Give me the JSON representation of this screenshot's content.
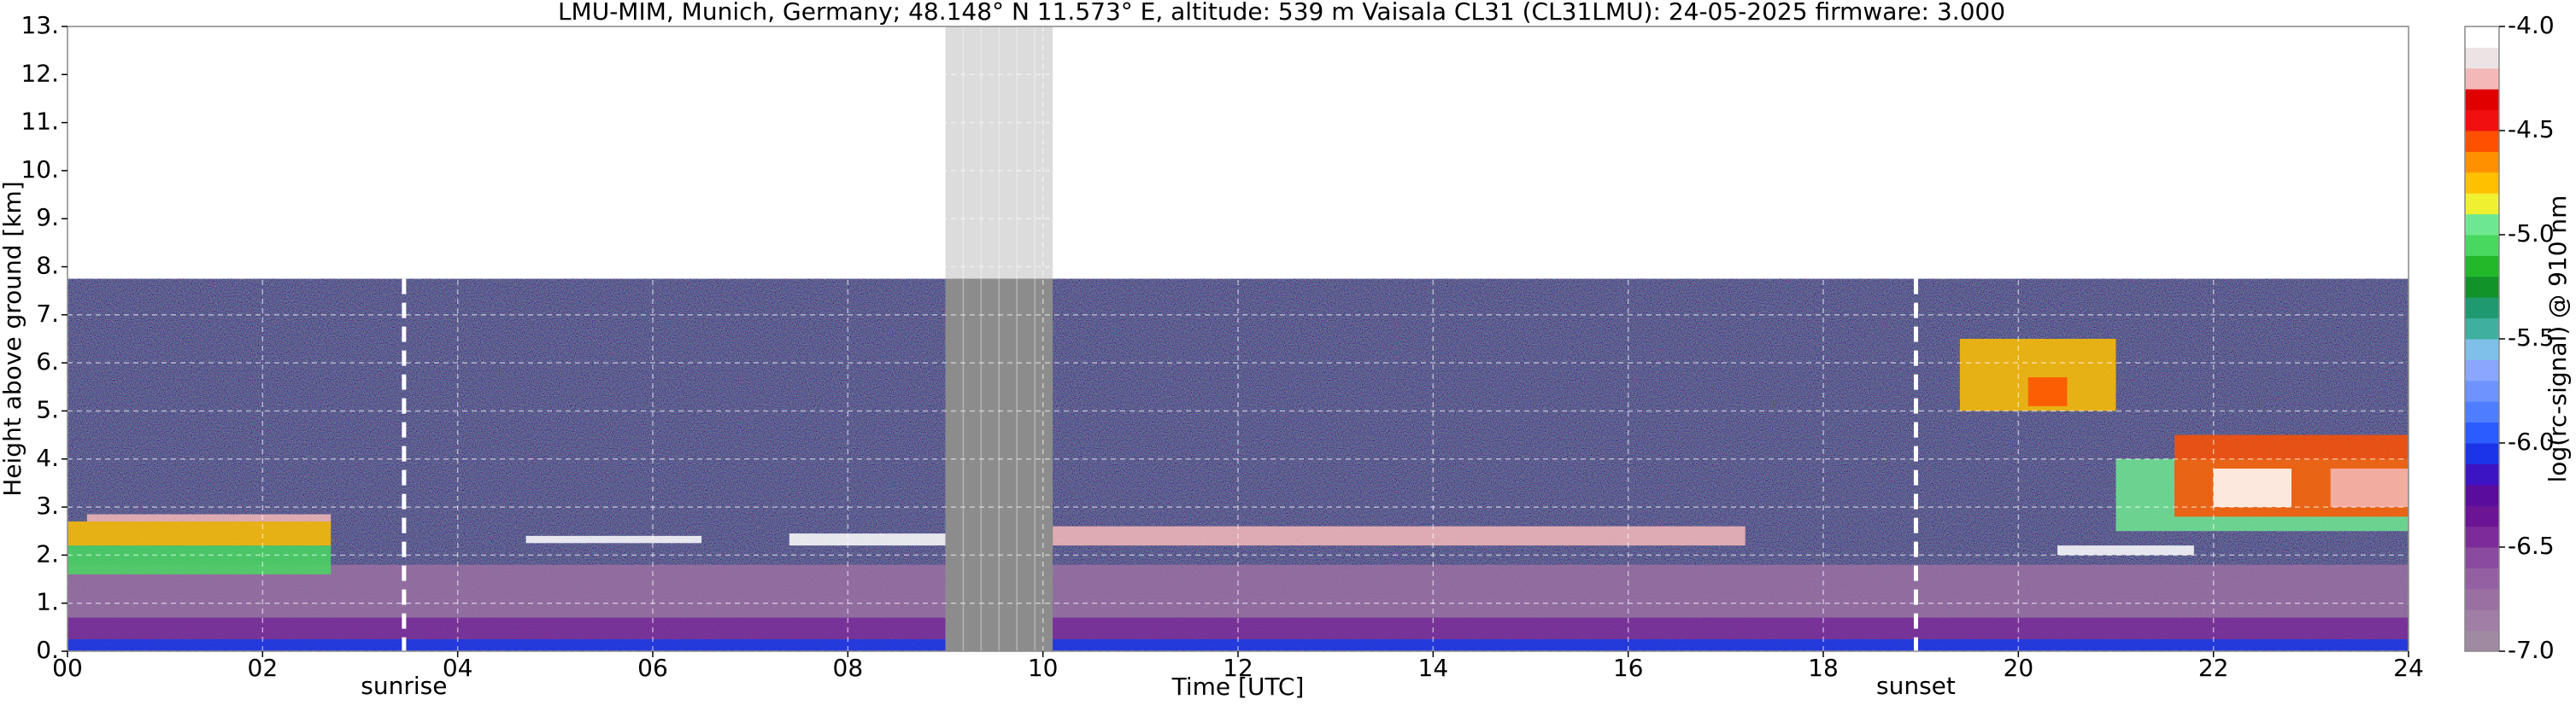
{
  "chart_data": {
    "type": "heatmap",
    "title": "LMU-MIM, Munich, Germany; 48.148° N 11.573° E, altitude: 539 m    Vaisala CL31 (CL31LMU): 24-05-2025    firmware: 3.000",
    "xlabel": "Time [UTC]",
    "ylabel": "Height above ground [km]",
    "colorbar_label": "log(rc-signal) @ 910 nm",
    "xlim": [
      0,
      24
    ],
    "ylim": [
      0,
      13
    ],
    "xticks": [
      {
        "value": 0,
        "label": "00"
      },
      {
        "value": 2,
        "label": "02"
      },
      {
        "value": 4,
        "label": "04"
      },
      {
        "value": 6,
        "label": "06"
      },
      {
        "value": 8,
        "label": "08"
      },
      {
        "value": 10,
        "label": "10"
      },
      {
        "value": 12,
        "label": "12"
      },
      {
        "value": 14,
        "label": "14"
      },
      {
        "value": 16,
        "label": "16"
      },
      {
        "value": 18,
        "label": "18"
      },
      {
        "value": 20,
        "label": "20"
      },
      {
        "value": 22,
        "label": "22"
      },
      {
        "value": 24,
        "label": "24"
      }
    ],
    "yticks": [
      {
        "value": 0,
        "label": "0."
      },
      {
        "value": 1,
        "label": "1."
      },
      {
        "value": 2,
        "label": "2."
      },
      {
        "value": 3,
        "label": "3."
      },
      {
        "value": 4,
        "label": "4."
      },
      {
        "value": 5,
        "label": "5."
      },
      {
        "value": 6,
        "label": "6."
      },
      {
        "value": 7,
        "label": "7."
      },
      {
        "value": 8,
        "label": "8."
      },
      {
        "value": 9,
        "label": "9."
      },
      {
        "value": 10,
        "label": "10."
      },
      {
        "value": 11,
        "label": "11."
      },
      {
        "value": 12,
        "label": "12."
      },
      {
        "value": 13,
        "label": "13."
      }
    ],
    "clim": [
      -7.0,
      -4.0
    ],
    "cticks": [
      {
        "value": -7.0,
        "label": "-7.0"
      },
      {
        "value": -6.5,
        "label": "-6.5"
      },
      {
        "value": -6.0,
        "label": "-6.0"
      },
      {
        "value": -5.5,
        "label": "-5.5"
      },
      {
        "value": -5.0,
        "label": "-5.0"
      },
      {
        "value": -4.5,
        "label": "-4.5"
      },
      {
        "value": -4.0,
        "label": "-4.0"
      }
    ],
    "colormap": [
      "#a08aa2",
      "#a07ea6",
      "#9a70a2",
      "#9460a2",
      "#8a4aa0",
      "#7c2c9a",
      "#6c1496",
      "#5a0c9c",
      "#3c14c4",
      "#1c34e8",
      "#2a5cff",
      "#4f7dff",
      "#6e93ff",
      "#8aa6ff",
      "#7ec0e8",
      "#3fb0a0",
      "#1f9a70",
      "#11932a",
      "#22b82a",
      "#48d860",
      "#6ee890",
      "#f0f030",
      "#ffc000",
      "#ff9000",
      "#ff5000",
      "#f01010",
      "#e00000",
      "#f4b8b8",
      "#ece4e4",
      "#ffffff"
    ],
    "grid": true,
    "range_top": 7.75,
    "missing": [
      9.0,
      10.1
    ],
    "layers": [
      {
        "t": [
          0,
          24
        ],
        "h": [
          0,
          0.25
        ],
        "value": -6.1
      },
      {
        "t": [
          0,
          24
        ],
        "h": [
          0.25,
          0.7
        ],
        "value": -6.5
      },
      {
        "t": [
          0,
          24
        ],
        "h": [
          0.7,
          1.2
        ],
        "value": -6.7
      },
      {
        "t": [
          0,
          24
        ],
        "h": [
          1.2,
          1.8
        ],
        "value": -6.8
      },
      {
        "t": [
          0,
          2.7
        ],
        "h": [
          1.6,
          2.2
        ],
        "value": -5.1
      },
      {
        "t": [
          0,
          2.7
        ],
        "h": [
          2.2,
          2.7
        ],
        "value": -4.8
      },
      {
        "t": [
          0.2,
          2.7
        ],
        "h": [
          2.7,
          2.85
        ],
        "value": -4.2
      },
      {
        "t": [
          4.7,
          6.5
        ],
        "h": [
          2.25,
          2.4
        ],
        "value": -4.1
      },
      {
        "t": [
          7.4,
          9.0
        ],
        "h": [
          2.2,
          2.45
        ],
        "value": -4.1
      },
      {
        "t": [
          10.1,
          17.2
        ],
        "h": [
          2.2,
          2.6
        ],
        "value": -4.3
      },
      {
        "t": [
          20.4,
          21.8
        ],
        "h": [
          2.0,
          2.2
        ],
        "value": -4.1
      },
      {
        "t": [
          19.4,
          21.0
        ],
        "h": [
          5.0,
          6.5
        ],
        "value": -4.8
      },
      {
        "t": [
          20.1,
          20.5
        ],
        "h": [
          5.1,
          5.7
        ],
        "value": -4.6
      },
      {
        "t": [
          21.0,
          24
        ],
        "h": [
          2.5,
          4.0
        ],
        "value": -5.0
      },
      {
        "t": [
          21.6,
          24
        ],
        "h": [
          2.8,
          4.5
        ],
        "value": -4.6
      },
      {
        "t": [
          22.0,
          22.8
        ],
        "h": [
          3.0,
          3.8
        ],
        "value": -4.05
      },
      {
        "t": [
          23.2,
          24
        ],
        "h": [
          3.0,
          3.8
        ],
        "value": -4.2
      }
    ],
    "annotations": [
      {
        "text": "sunrise",
        "x": 3.45
      },
      {
        "text": "sunset",
        "x": 18.95
      }
    ]
  }
}
